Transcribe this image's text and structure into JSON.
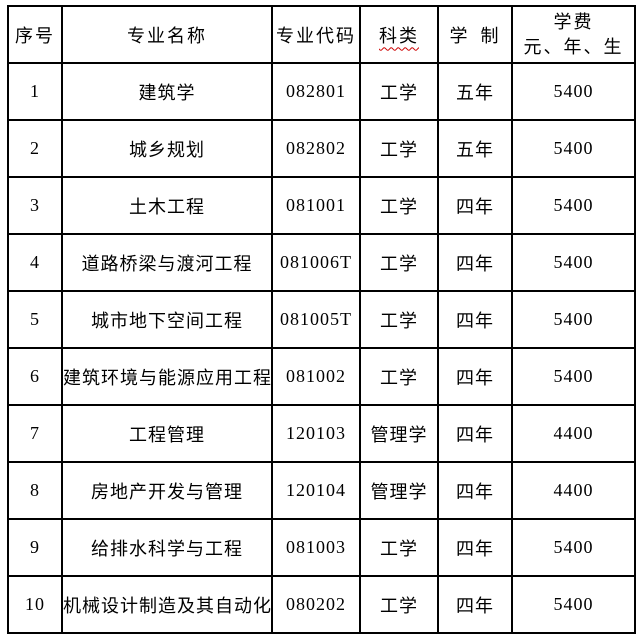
{
  "table": {
    "headers": {
      "no": "序号",
      "name": "专业名称",
      "code": "专业代码",
      "category": "科类",
      "duration": "学 制",
      "fee_line1": "学费",
      "fee_line2": "元、年、生"
    },
    "rows": [
      {
        "no": "1",
        "name": "建筑学",
        "code": "082801",
        "category": "工学",
        "duration": "五年",
        "fee": "5400"
      },
      {
        "no": "2",
        "name": "城乡规划",
        "code": "082802",
        "category": "工学",
        "duration": "五年",
        "fee": "5400"
      },
      {
        "no": "3",
        "name": "土木工程",
        "code": "081001",
        "category": "工学",
        "duration": "四年",
        "fee": "5400"
      },
      {
        "no": "4",
        "name": "道路桥梁与渡河工程",
        "code": "081006T",
        "category": "工学",
        "duration": "四年",
        "fee": "5400"
      },
      {
        "no": "5",
        "name": "城市地下空间工程",
        "code": "081005T",
        "category": "工学",
        "duration": "四年",
        "fee": "5400"
      },
      {
        "no": "6",
        "name": "建筑环境与能源应用工程",
        "code": "081002",
        "category": "工学",
        "duration": "四年",
        "fee": "5400"
      },
      {
        "no": "7",
        "name": "工程管理",
        "code": "120103",
        "category": "管理学",
        "duration": "四年",
        "fee": "4400"
      },
      {
        "no": "8",
        "name": "房地产开发与管理",
        "code": "120104",
        "category": "管理学",
        "duration": "四年",
        "fee": "4400"
      },
      {
        "no": "9",
        "name": "给排水科学与工程",
        "code": "081003",
        "category": "工学",
        "duration": "四年",
        "fee": "5400"
      },
      {
        "no": "10",
        "name": "机械设计制造及其自动化",
        "code": "080202",
        "category": "工学",
        "duration": "四年",
        "fee": "5400"
      }
    ],
    "squiggle_color": "#cc0000"
  }
}
